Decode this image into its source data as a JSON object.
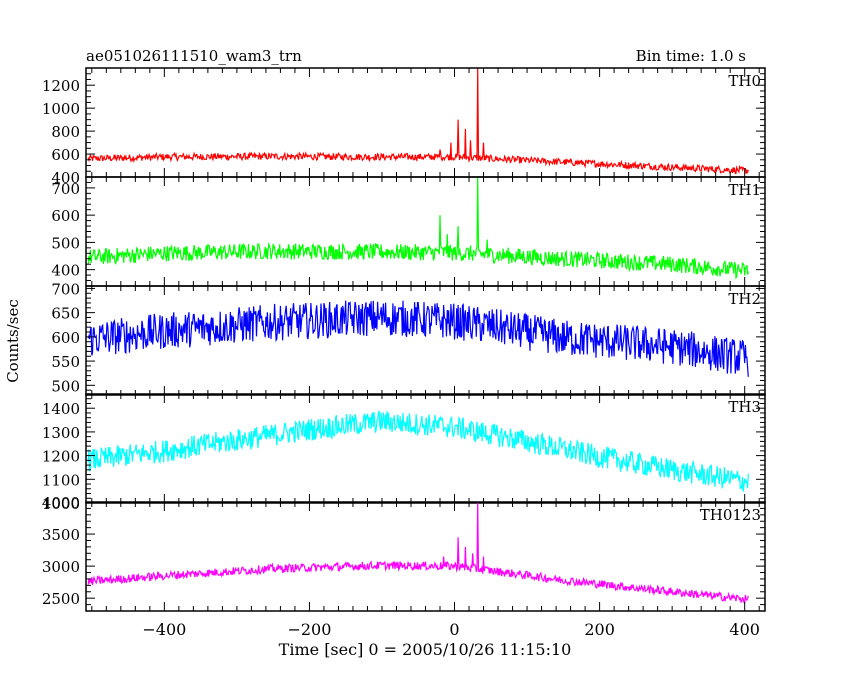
{
  "header": {
    "title": "ae051026111510_wam3_trn",
    "bin_time": "Bin time: 1.0 s"
  },
  "axes": {
    "ylabel": "Counts/sec",
    "xlabel": "Time [sec] 0 = 2005/10/26 11:15:10",
    "x_ticks": [
      -400,
      -200,
      0,
      200,
      400
    ],
    "x_minor_step": 20,
    "xlim": [
      -508,
      428
    ]
  },
  "chart_data": {
    "type": "line",
    "title": "ae051026111510_wam3_trn",
    "xlabel": "Time [sec] 0 = 2005/10/26 11:15:10",
    "ylabel": "Counts/sec",
    "xlim": [
      -508,
      428
    ],
    "x_range": [
      -505,
      405
    ],
    "grid": false,
    "panels": [
      {
        "name": "TH0",
        "color": "#ff0000",
        "ylim": [
          400,
          1350
        ],
        "y_ticks": [
          400,
          600,
          800,
          1000,
          1200
        ],
        "y_minor_step": 50,
        "baseline": [
          [
            -505,
            560
          ],
          [
            -400,
            575
          ],
          [
            -250,
            580
          ],
          [
            -100,
            575
          ],
          [
            0,
            575
          ],
          [
            50,
            560
          ],
          [
            150,
            530
          ],
          [
            300,
            485
          ],
          [
            405,
            455
          ]
        ],
        "noise": 30,
        "spikes": [
          [
            -20,
            640
          ],
          [
            -5,
            700
          ],
          [
            5,
            900
          ],
          [
            15,
            820
          ],
          [
            22,
            720
          ],
          [
            32,
            1350
          ],
          [
            40,
            700
          ]
        ]
      },
      {
        "name": "TH1",
        "color": "#00ff00",
        "ylim": [
          340,
          740
        ],
        "y_ticks": [
          400,
          500,
          600,
          700
        ],
        "y_minor_step": 20,
        "baseline": [
          [
            -505,
            445
          ],
          [
            -400,
            460
          ],
          [
            -250,
            468
          ],
          [
            -100,
            465
          ],
          [
            0,
            462
          ],
          [
            50,
            455
          ],
          [
            150,
            440
          ],
          [
            300,
            420
          ],
          [
            405,
            395
          ]
        ],
        "noise": 30,
        "spikes": [
          [
            -20,
            600
          ],
          [
            -10,
            530
          ],
          [
            5,
            560
          ],
          [
            32,
            740
          ],
          [
            45,
            510
          ]
        ]
      },
      {
        "name": "TH2",
        "color": "#0000ff",
        "ylim": [
          480,
          705
        ],
        "y_ticks": [
          500,
          550,
          600,
          650,
          700
        ],
        "y_minor_step": 10,
        "baseline": [
          [
            -505,
            595
          ],
          [
            -400,
            612
          ],
          [
            -250,
            630
          ],
          [
            -100,
            640
          ],
          [
            0,
            632
          ],
          [
            50,
            622
          ],
          [
            150,
            598
          ],
          [
            300,
            580
          ],
          [
            405,
            555
          ]
        ],
        "noise": 38,
        "spikes": []
      },
      {
        "name": "TH3",
        "color": "#00ffff",
        "ylim": [
          1000,
          1460
        ],
        "y_ticks": [
          1000,
          1100,
          1200,
          1300,
          1400
        ],
        "y_minor_step": 20,
        "baseline": [
          [
            -505,
            1180
          ],
          [
            -400,
            1220
          ],
          [
            -300,
            1265
          ],
          [
            -200,
            1310
          ],
          [
            -100,
            1345
          ],
          [
            0,
            1320
          ],
          [
            100,
            1260
          ],
          [
            200,
            1195
          ],
          [
            300,
            1140
          ],
          [
            405,
            1090
          ]
        ],
        "noise": 48,
        "spikes": []
      },
      {
        "name": "TH0123",
        "color": "#ff00ff",
        "ylim": [
          2300,
          4000
        ],
        "y_ticks": [
          2500,
          3000,
          3500,
          4000
        ],
        "y_minor_step": 100,
        "baseline": [
          [
            -505,
            2760
          ],
          [
            -400,
            2850
          ],
          [
            -250,
            2960
          ],
          [
            -100,
            3010
          ],
          [
            0,
            3000
          ],
          [
            50,
            2930
          ],
          [
            150,
            2780
          ],
          [
            300,
            2600
          ],
          [
            405,
            2480
          ]
        ],
        "noise": 65,
        "spikes": [
          [
            -15,
            3150
          ],
          [
            5,
            3450
          ],
          [
            15,
            3300
          ],
          [
            25,
            3200
          ],
          [
            32,
            4000
          ],
          [
            40,
            3150
          ]
        ]
      }
    ]
  }
}
